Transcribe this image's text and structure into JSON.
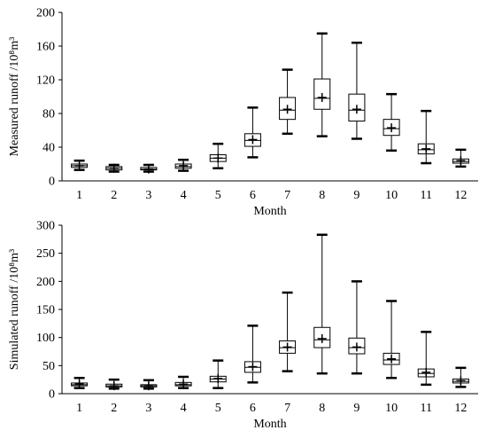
{
  "chart_data": [
    {
      "type": "boxplot",
      "xlabel": "Month",
      "ylabel": "Measured runoff /10⁸m³",
      "ylim": [
        0,
        200
      ],
      "yticks": [
        0,
        40,
        80,
        120,
        160,
        200
      ],
      "categories": [
        "1",
        "2",
        "3",
        "4",
        "5",
        "6",
        "7",
        "8",
        "9",
        "10",
        "11",
        "12"
      ],
      "boxes": [
        {
          "min": 13,
          "q1": 16,
          "median": 18,
          "mean": 18,
          "q3": 20,
          "max": 24
        },
        {
          "min": 11,
          "q1": 13,
          "median": 15,
          "mean": 15,
          "q3": 17,
          "max": 19
        },
        {
          "min": 11,
          "q1": 13,
          "median": 14,
          "mean": 14,
          "q3": 16,
          "max": 19
        },
        {
          "min": 12,
          "q1": 15,
          "median": 17,
          "mean": 18,
          "q3": 20,
          "max": 25
        },
        {
          "min": 15,
          "q1": 23,
          "median": 27,
          "mean": 27,
          "q3": 31,
          "max": 44
        },
        {
          "min": 28,
          "q1": 41,
          "median": 48,
          "mean": 49,
          "q3": 56,
          "max": 87
        },
        {
          "min": 56,
          "q1": 73,
          "median": 84,
          "mean": 85,
          "q3": 99,
          "max": 132
        },
        {
          "min": 53,
          "q1": 85,
          "median": 98,
          "mean": 99,
          "q3": 121,
          "max": 175
        },
        {
          "min": 50,
          "q1": 71,
          "median": 84,
          "mean": 85,
          "q3": 103,
          "max": 164
        },
        {
          "min": 36,
          "q1": 54,
          "median": 62,
          "mean": 63,
          "q3": 73,
          "max": 103
        },
        {
          "min": 21,
          "q1": 32,
          "median": 37,
          "mean": 38,
          "q3": 44,
          "max": 83
        },
        {
          "min": 17,
          "q1": 21,
          "median": 23,
          "mean": 24,
          "q3": 26,
          "max": 37
        }
      ]
    },
    {
      "type": "boxplot",
      "xlabel": "Month",
      "ylabel": "Simulated runoff /10⁸m³",
      "ylim": [
        0,
        300
      ],
      "yticks": [
        0,
        50,
        100,
        150,
        200,
        250,
        300
      ],
      "categories": [
        "1",
        "2",
        "3",
        "4",
        "5",
        "6",
        "7",
        "8",
        "9",
        "10",
        "11",
        "12"
      ],
      "boxes": [
        {
          "min": 10,
          "q1": 14,
          "median": 16,
          "mean": 17,
          "q3": 19,
          "max": 28
        },
        {
          "min": 9,
          "q1": 12,
          "median": 14,
          "mean": 14,
          "q3": 17,
          "max": 25
        },
        {
          "min": 9,
          "q1": 12,
          "median": 14,
          "mean": 14,
          "q3": 16,
          "max": 24
        },
        {
          "min": 10,
          "q1": 14,
          "median": 16,
          "mean": 17,
          "q3": 20,
          "max": 30
        },
        {
          "min": 10,
          "q1": 21,
          "median": 26,
          "mean": 27,
          "q3": 31,
          "max": 59
        },
        {
          "min": 20,
          "q1": 38,
          "median": 47,
          "mean": 48,
          "q3": 57,
          "max": 121
        },
        {
          "min": 40,
          "q1": 72,
          "median": 82,
          "mean": 83,
          "q3": 94,
          "max": 180
        },
        {
          "min": 36,
          "q1": 82,
          "median": 96,
          "mean": 98,
          "q3": 118,
          "max": 283
        },
        {
          "min": 36,
          "q1": 71,
          "median": 82,
          "mean": 83,
          "q3": 99,
          "max": 200
        },
        {
          "min": 28,
          "q1": 52,
          "median": 60,
          "mean": 62,
          "q3": 72,
          "max": 165
        },
        {
          "min": 16,
          "q1": 30,
          "median": 36,
          "mean": 38,
          "q3": 44,
          "max": 110
        },
        {
          "min": 12,
          "q1": 19,
          "median": 22,
          "mean": 23,
          "q3": 26,
          "max": 46
        }
      ]
    }
  ]
}
